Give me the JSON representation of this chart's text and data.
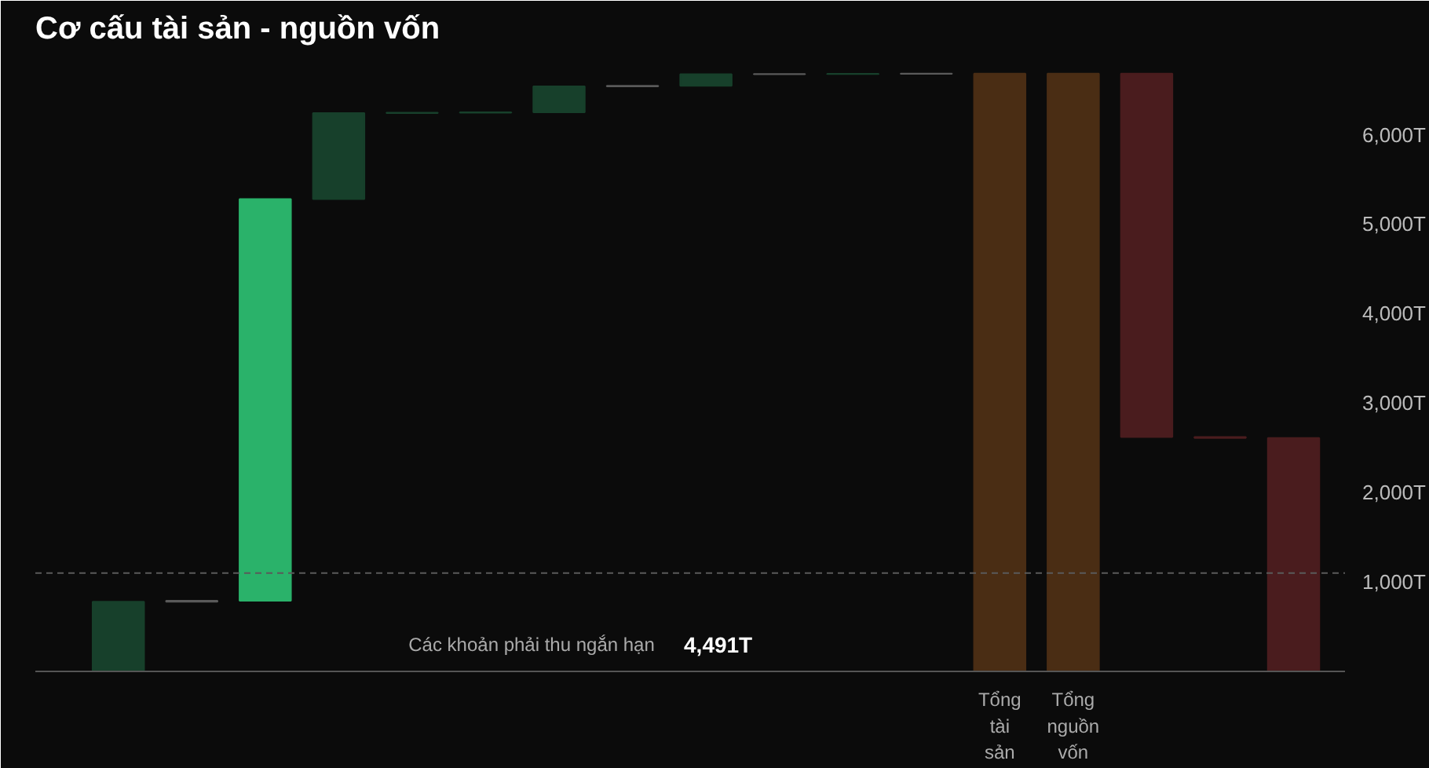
{
  "chart_data": {
    "type": "bar",
    "title": "Cơ cấu tài sản - nguồn vốn",
    "categories": [
      null,
      null,
      null,
      null,
      null,
      null,
      null,
      null,
      null,
      null,
      null,
      null,
      "Tổng tài sản",
      "Tổng nguồn vốn",
      null,
      null,
      null
    ],
    "values": [
      780,
      10,
      4491,
      960,
      5,
      5,
      290,
      5,
      130,
      2,
      2,
      2,
      6682,
      6682,
      -4062,
      -10,
      2610
    ],
    "base": [
      0,
      780,
      790,
      5281,
      6241,
      6246,
      6251,
      6541,
      6546,
      6676,
      6678,
      6680,
      0,
      0,
      6682,
      2620,
      0
    ],
    "colors": [
      "#17402b",
      "#5a5a5a",
      "#2ab26a",
      "#17402b",
      "#17402b",
      "#17402b",
      "#17402b",
      "#5a5a5a",
      "#17402b",
      "#5a5a5a",
      "#17402b",
      "#5a5a5a",
      "#4a2d14",
      "#4a2d14",
      "#4a1c1e",
      "#4a1c1e",
      "#4a1c1e"
    ],
    "ylim": [
      0,
      6900
    ],
    "yticks": [
      {
        "value": 1000,
        "label": "1,000T"
      },
      {
        "value": 2000,
        "label": "2,000T"
      },
      {
        "value": 3000,
        "label": "3,000T"
      },
      {
        "value": 4000,
        "label": "4,000T"
      },
      {
        "value": 5000,
        "label": "5,000T"
      },
      {
        "value": 6000,
        "label": "6,000T"
      }
    ],
    "ref_lines": [
      {
        "axis": "y",
        "value": 1100,
        "color": "#5a5a5a",
        "line_style": "dashed"
      }
    ],
    "annotations": [
      "Các khoản phải thu ngắn hạn",
      "4,491T"
    ],
    "grid": false
  }
}
